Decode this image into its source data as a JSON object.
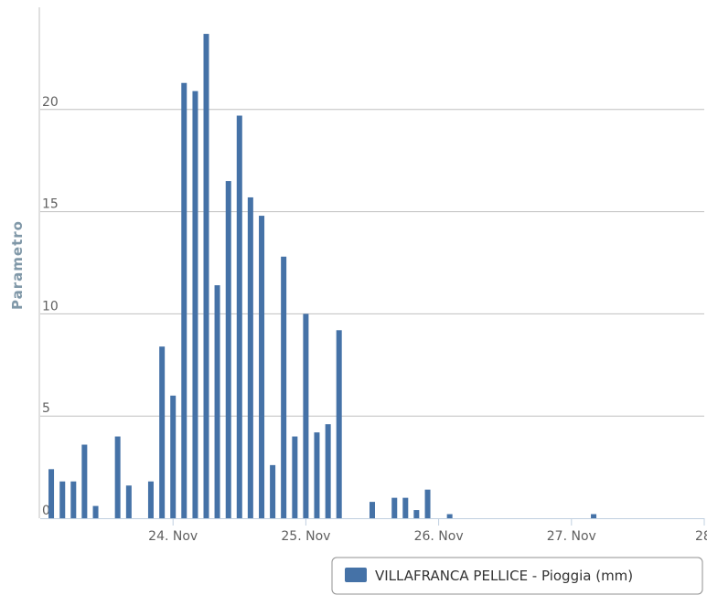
{
  "chart_data": {
    "type": "bar",
    "ylabel": "Parametro",
    "xlabel": "",
    "title": "",
    "ylim": [
      0,
      25
    ],
    "y_ticks": [
      0,
      5,
      10,
      15,
      20
    ],
    "y_tick_labels": [
      "0",
      "5",
      "10",
      "15",
      "20"
    ],
    "x_range_days": [
      23.0,
      28.0
    ],
    "x_ticks": [
      {
        "day": 24,
        "label": "24. Nov"
      },
      {
        "day": 25,
        "label": "25. Nov"
      },
      {
        "day": 26,
        "label": "26. Nov"
      },
      {
        "day": 27,
        "label": "27. Nov"
      },
      {
        "day": 28,
        "label": "28"
      }
    ],
    "grid": true,
    "legend_position": "bottom-right",
    "series": [
      {
        "name": "VILLAFRANCA PELLICE - Pioggia (mm)",
        "color": "#4572a7",
        "points": [
          {
            "day": 23.083,
            "value": 2.4
          },
          {
            "day": 23.167,
            "value": 1.8
          },
          {
            "day": 23.25,
            "value": 1.8
          },
          {
            "day": 23.333,
            "value": 3.6
          },
          {
            "day": 23.417,
            "value": 0.6
          },
          {
            "day": 23.583,
            "value": 4.0
          },
          {
            "day": 23.667,
            "value": 1.6
          },
          {
            "day": 23.833,
            "value": 1.8
          },
          {
            "day": 23.917,
            "value": 8.4
          },
          {
            "day": 24.0,
            "value": 6.0
          },
          {
            "day": 24.083,
            "value": 21.3
          },
          {
            "day": 24.167,
            "value": 20.9
          },
          {
            "day": 24.25,
            "value": 23.7
          },
          {
            "day": 24.333,
            "value": 11.4
          },
          {
            "day": 24.417,
            "value": 16.5
          },
          {
            "day": 24.5,
            "value": 19.7
          },
          {
            "day": 24.583,
            "value": 15.7
          },
          {
            "day": 24.667,
            "value": 14.8
          },
          {
            "day": 24.75,
            "value": 2.6
          },
          {
            "day": 24.833,
            "value": 12.8
          },
          {
            "day": 24.917,
            "value": 4.0
          },
          {
            "day": 25.0,
            "value": 10.0
          },
          {
            "day": 25.083,
            "value": 4.2
          },
          {
            "day": 25.167,
            "value": 4.6
          },
          {
            "day": 25.25,
            "value": 9.2
          },
          {
            "day": 25.5,
            "value": 0.8
          },
          {
            "day": 25.667,
            "value": 1.0
          },
          {
            "day": 25.75,
            "value": 1.0
          },
          {
            "day": 25.833,
            "value": 0.4
          },
          {
            "day": 25.917,
            "value": 1.4
          },
          {
            "day": 26.083,
            "value": 0.2
          },
          {
            "day": 27.167,
            "value": 0.2
          }
        ]
      }
    ]
  }
}
